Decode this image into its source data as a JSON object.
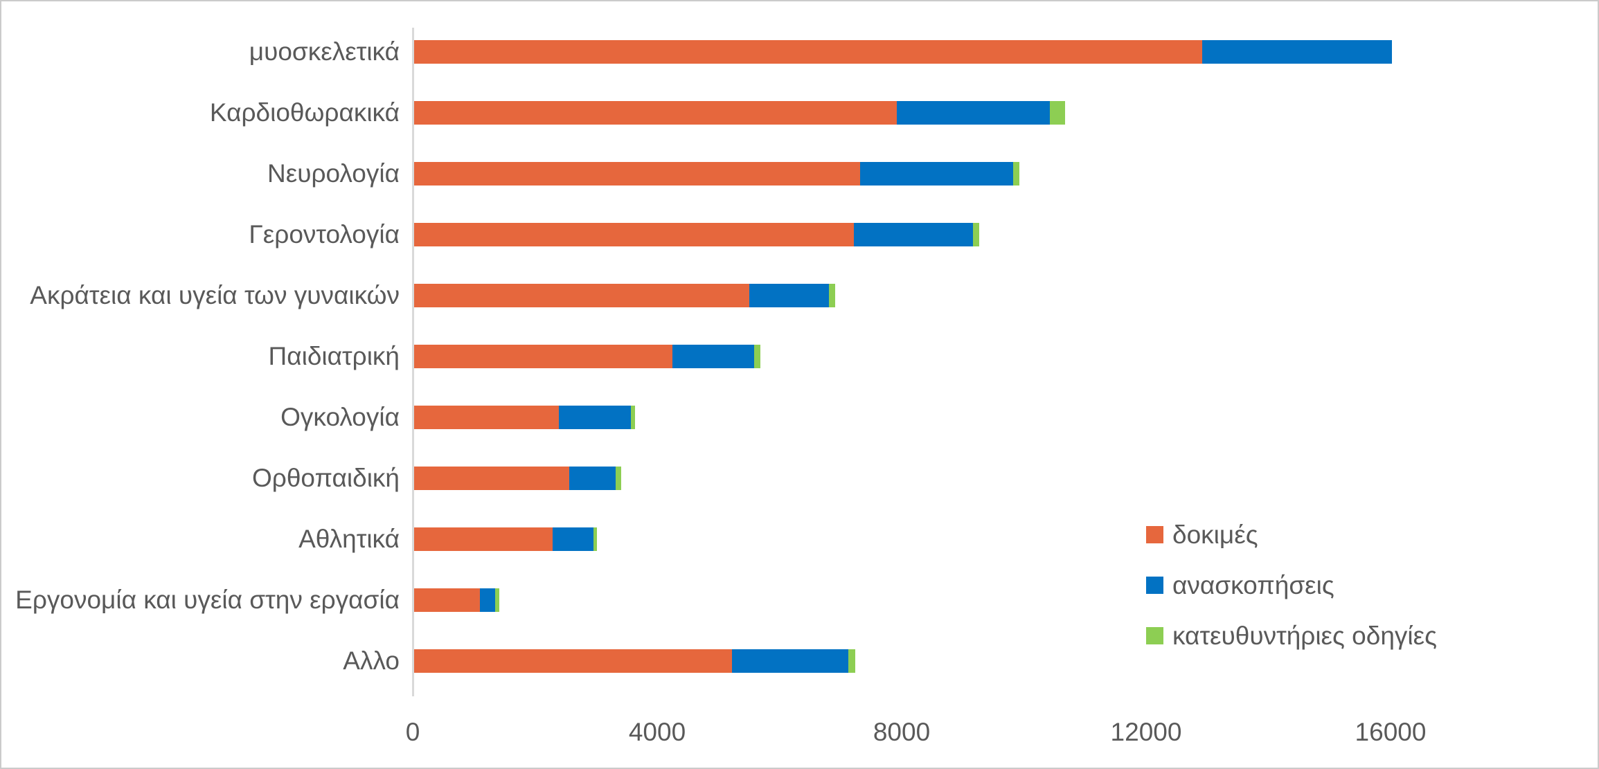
{
  "chart_data": {
    "type": "bar",
    "orientation": "horizontal",
    "stacked": true,
    "title": "",
    "xlabel": "",
    "ylabel": "",
    "grid": false,
    "legend_position": "right-middle",
    "xlim": [
      0,
      19400
    ],
    "x_ticks": [
      0,
      4000,
      8000,
      12000,
      16000
    ],
    "x_tick_labels": [
      "0",
      "4000",
      "8000",
      "12000",
      "16000"
    ],
    "categories": [
      "μυοσκελετικά",
      "Καρδιοθωρακικά",
      "Νευρολογία",
      "Γεροντολογία",
      "Ακράτεια και υγεία των γυναικών",
      "Παιδιατρική",
      "Ογκολογία",
      "Ορθοπαιδική",
      "Αθλητικά",
      "Εργονομία και υγεία στην εργασία",
      "Αλλο"
    ],
    "series": [
      {
        "name": "δοκιμές",
        "color": "#E6673D",
        "values": [
          12900,
          7900,
          7300,
          7200,
          5480,
          4230,
          2370,
          2540,
          2270,
          1080,
          5200
        ]
      },
      {
        "name": "ανασκοπήσεις",
        "color": "#0272C3",
        "values": [
          3100,
          2500,
          2500,
          1950,
          1310,
          1330,
          1180,
          760,
          660,
          250,
          1910
        ]
      },
      {
        "name": "κατευθυντήριες οδηγίες",
        "color": "#8DCE53",
        "values": [
          0,
          250,
          100,
          100,
          100,
          110,
          70,
          90,
          60,
          60,
          110
        ]
      }
    ],
    "colors": {
      "axis_line": "#d9d9d9",
      "text": "#595959",
      "background": "#ffffff"
    }
  }
}
